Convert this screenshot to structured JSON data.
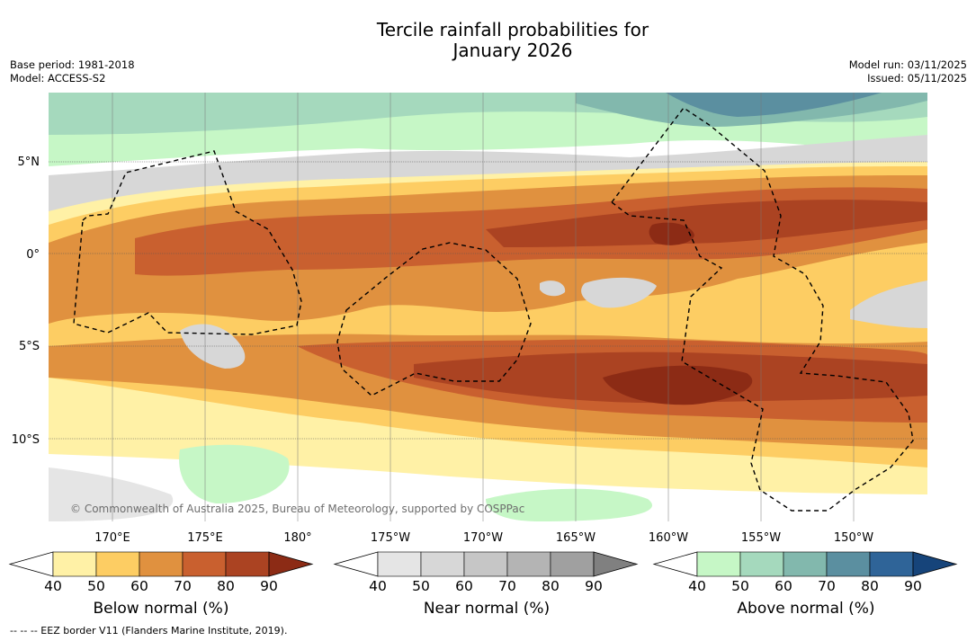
{
  "title": {
    "line1": "Tercile rainfall probabilities for",
    "line2": "January 2026"
  },
  "meta_left": {
    "base_period": "Base period: 1981-2018",
    "model": "Model: ACCESS-S2"
  },
  "meta_right": {
    "model_run": "Model run: 03/11/2025",
    "issued": "Issued: 05/11/2025"
  },
  "map": {
    "lat_labels": [
      "5°N",
      "0°",
      "5°S",
      "10°S"
    ],
    "lon_labels": [
      "170°E",
      "175°E",
      "180°",
      "175°W",
      "170°W",
      "165°W",
      "160°W",
      "155°W",
      "150°W"
    ],
    "copyright": "© Commonwealth of Australia 2025, Bureau of Meteorology, supported by COSPPac"
  },
  "colorbars": {
    "ticks": [
      "40",
      "50",
      "60",
      "70",
      "80",
      "90"
    ],
    "below": {
      "label": "Below normal (%)",
      "colors": [
        "#ffffff",
        "#fff1a6",
        "#fdcd63",
        "#e0913f",
        "#c9602f",
        "#ab4322",
        "#8c2b15"
      ]
    },
    "near": {
      "label": "Near normal (%)",
      "colors": [
        "#ffffff",
        "#e5e5e5",
        "#d7d7d7",
        "#c6c6c6",
        "#b4b4b4",
        "#a0a0a0",
        "#808080"
      ]
    },
    "above": {
      "label": "Above normal (%)",
      "colors": [
        "#ffffff",
        "#c6f7c6",
        "#a5d9bd",
        "#82b8ad",
        "#5b8fa0",
        "#2f6498",
        "#16447a"
      ]
    }
  },
  "footer": "--  --  -- EEZ border V11 (Flanders Marine Institute, 2019)."
}
